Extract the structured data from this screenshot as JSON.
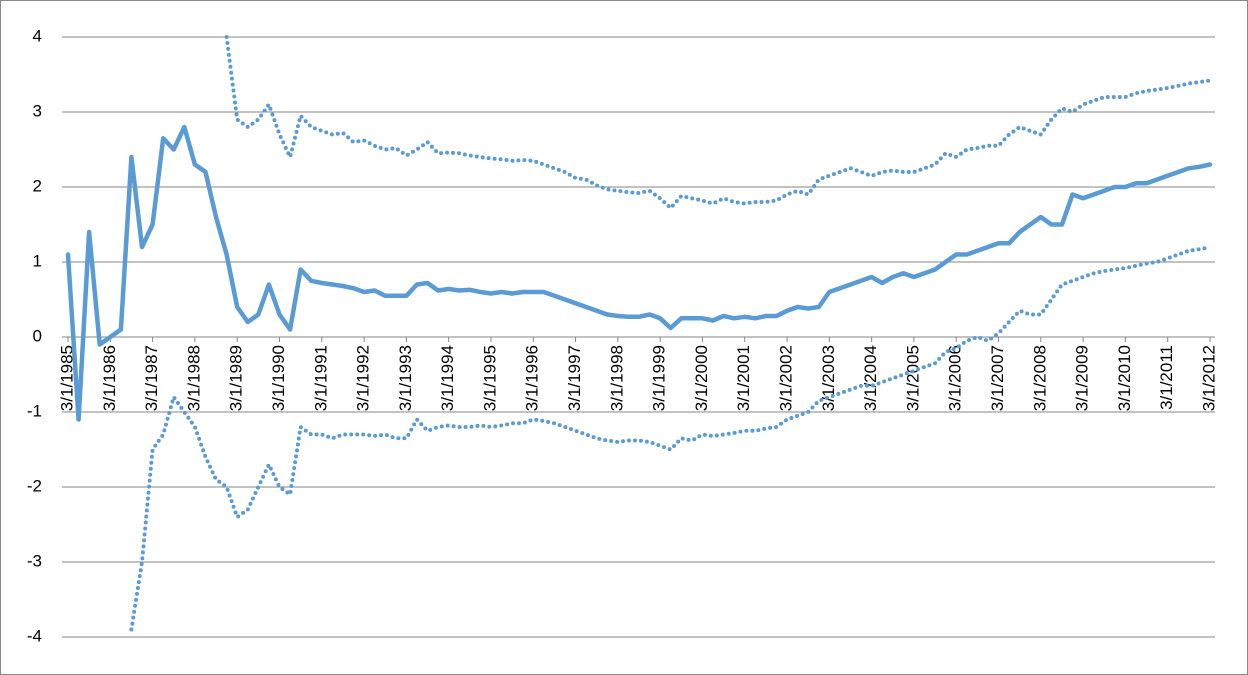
{
  "chart_data": {
    "type": "line",
    "categories": [
      "3/1/1985",
      null,
      null,
      null,
      "3/1/1986",
      null,
      null,
      null,
      "3/1/1987",
      null,
      null,
      null,
      "3/1/1988",
      null,
      null,
      null,
      "3/1/1989",
      null,
      null,
      null,
      "3/1/1990",
      null,
      null,
      null,
      "3/1/1991",
      null,
      null,
      null,
      "3/1/1992",
      null,
      null,
      null,
      "3/1/1993",
      null,
      null,
      null,
      "3/1/1994",
      null,
      null,
      null,
      "3/1/1995",
      null,
      null,
      null,
      "3/1/1996",
      null,
      null,
      null,
      "3/1/1997",
      null,
      null,
      null,
      "3/1/1998",
      null,
      null,
      null,
      "3/1/1999",
      null,
      null,
      null,
      "3/1/2000",
      null,
      null,
      null,
      "3/1/2001",
      null,
      null,
      null,
      "3/1/2002",
      null,
      null,
      null,
      "3/1/2003",
      null,
      null,
      null,
      "3/1/2004",
      null,
      null,
      null,
      "3/1/2005",
      null,
      null,
      null,
      "3/1/2006",
      null,
      null,
      null,
      "3/1/2007",
      null,
      null,
      null,
      "3/1/2008",
      null,
      null,
      null,
      "3/1/2009",
      null,
      null,
      null,
      "3/1/2010",
      null,
      null,
      null,
      "3/1/2011",
      null,
      null,
      null,
      "3/1/2012"
    ],
    "series": [
      {
        "color": "#5b9bd5",
        "style": "solid",
        "values": [
          1.1,
          -1.1,
          1.4,
          -0.1,
          0.0,
          0.1,
          2.4,
          1.2,
          1.5,
          2.65,
          2.5,
          2.8,
          2.3,
          2.2,
          1.6,
          1.1,
          0.4,
          0.2,
          0.3,
          0.7,
          0.3,
          0.1,
          0.9,
          0.75,
          0.72,
          0.7,
          0.68,
          0.65,
          0.6,
          0.62,
          0.55,
          0.55,
          0.55,
          0.7,
          0.72,
          0.62,
          0.64,
          0.62,
          0.63,
          0.6,
          0.58,
          0.6,
          0.58,
          0.6,
          0.6,
          0.6,
          0.55,
          0.5,
          0.45,
          0.4,
          0.35,
          0.3,
          0.28,
          0.27,
          0.27,
          0.3,
          0.25,
          0.12,
          0.25,
          0.25,
          0.25,
          0.22,
          0.28,
          0.25,
          0.27,
          0.25,
          0.28,
          0.28,
          0.35,
          0.4,
          0.38,
          0.4,
          0.6,
          0.65,
          0.7,
          0.75,
          0.8,
          0.72,
          0.8,
          0.85,
          0.8,
          0.85,
          0.9,
          1.0,
          1.1,
          1.1,
          1.15,
          1.2,
          1.25,
          1.25,
          1.4,
          1.5,
          1.6,
          1.5,
          1.5,
          1.9,
          1.85,
          1.9,
          1.95,
          2.0,
          2.0,
          2.05,
          2.05,
          2.1,
          2.15,
          2.2,
          2.25,
          2.27,
          2.3
        ]
      },
      {
        "color": "#5b9bd5",
        "style": "dotted",
        "values": [
          null,
          null,
          null,
          null,
          null,
          null,
          null,
          null,
          null,
          null,
          null,
          null,
          null,
          null,
          null,
          4.0,
          2.9,
          2.8,
          2.9,
          3.1,
          2.7,
          2.4,
          2.95,
          2.8,
          2.75,
          2.7,
          2.72,
          2.6,
          2.62,
          2.55,
          2.5,
          2.52,
          2.42,
          2.5,
          2.6,
          2.45,
          2.46,
          2.45,
          2.42,
          2.4,
          2.38,
          2.37,
          2.35,
          2.36,
          2.35,
          2.3,
          2.25,
          2.2,
          2.12,
          2.1,
          2.02,
          1.97,
          1.95,
          1.93,
          1.92,
          1.95,
          1.85,
          1.72,
          1.88,
          1.85,
          1.82,
          1.78,
          1.85,
          1.8,
          1.78,
          1.8,
          1.8,
          1.82,
          1.9,
          1.95,
          1.9,
          2.1,
          2.15,
          2.2,
          2.25,
          2.2,
          2.15,
          2.2,
          2.22,
          2.2,
          2.2,
          2.25,
          2.3,
          2.45,
          2.4,
          2.5,
          2.52,
          2.55,
          2.55,
          2.7,
          2.8,
          2.75,
          2.7,
          2.9,
          3.05,
          3.0,
          3.1,
          3.15,
          3.2,
          3.2,
          3.2,
          3.25,
          3.28,
          3.3,
          3.32,
          3.35,
          3.38,
          3.4,
          3.42
        ]
      },
      {
        "color": "#5b9bd5",
        "style": "dotted",
        "values": [
          null,
          null,
          null,
          null,
          null,
          null,
          -3.9,
          -3.0,
          -1.5,
          -1.3,
          -0.8,
          -1.0,
          -1.2,
          -1.6,
          -1.9,
          -2.0,
          -2.4,
          -2.3,
          -2.0,
          -1.7,
          -2.0,
          -2.1,
          -1.2,
          -1.3,
          -1.3,
          -1.35,
          -1.3,
          -1.3,
          -1.3,
          -1.32,
          -1.3,
          -1.35,
          -1.35,
          -1.1,
          -1.25,
          -1.2,
          -1.18,
          -1.2,
          -1.2,
          -1.18,
          -1.2,
          -1.18,
          -1.15,
          -1.15,
          -1.1,
          -1.12,
          -1.15,
          -1.2,
          -1.25,
          -1.3,
          -1.35,
          -1.38,
          -1.4,
          -1.38,
          -1.38,
          -1.4,
          -1.45,
          -1.5,
          -1.35,
          -1.38,
          -1.3,
          -1.32,
          -1.3,
          -1.28,
          -1.25,
          -1.25,
          -1.22,
          -1.2,
          -1.1,
          -1.05,
          -1.0,
          -0.85,
          -0.8,
          -0.75,
          -0.7,
          -0.65,
          -0.65,
          -0.6,
          -0.55,
          -0.5,
          -0.45,
          -0.4,
          -0.35,
          -0.2,
          -0.15,
          -0.05,
          0.0,
          -0.05,
          0.05,
          0.2,
          0.35,
          0.3,
          0.3,
          0.5,
          0.7,
          0.75,
          0.8,
          0.85,
          0.88,
          0.9,
          0.92,
          0.95,
          0.98,
          1.0,
          1.05,
          1.1,
          1.15,
          1.17,
          1.2
        ]
      }
    ],
    "ylim": [
      -4,
      4
    ],
    "yticks": [
      -4,
      -3,
      -2,
      -1,
      0,
      1,
      2,
      3,
      4
    ],
    "grid": true
  }
}
